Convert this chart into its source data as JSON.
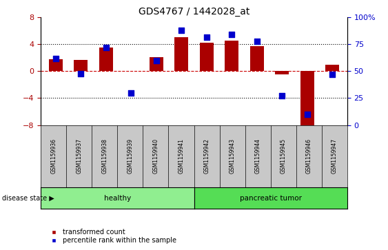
{
  "title": "GDS4767 / 1442028_at",
  "samples": [
    "GSM1159936",
    "GSM1159937",
    "GSM1159938",
    "GSM1159939",
    "GSM1159940",
    "GSM1159941",
    "GSM1159942",
    "GSM1159943",
    "GSM1159944",
    "GSM1159945",
    "GSM1159946",
    "GSM1159947"
  ],
  "transformed_count": [
    1.8,
    1.7,
    3.5,
    0.0,
    2.1,
    5.1,
    4.2,
    4.6,
    3.7,
    -0.5,
    -8.2,
    1.0
  ],
  "percentile_rank": [
    62,
    48,
    72,
    30,
    60,
    88,
    82,
    84,
    78,
    27,
    10,
    47
  ],
  "healthy_count": 6,
  "ylim_left": [
    -8,
    8
  ],
  "ylim_right": [
    0,
    100
  ],
  "yticks_left": [
    -8,
    -4,
    0,
    4,
    8
  ],
  "yticks_right": [
    0,
    25,
    50,
    75,
    100
  ],
  "bar_color": "#AA0000",
  "dot_color": "#0000CC",
  "hline_color": "#CC0000",
  "healthy_fill": "#90EE90",
  "tumor_fill": "#55DD55",
  "label_box_fill": "#C8C8C8",
  "disease_state_label": "disease state",
  "healthy_label": "healthy",
  "tumor_label": "pancreatic tumor",
  "legend_bar": "transformed count",
  "legend_dot": "percentile rank within the sample",
  "bar_width": 0.55,
  "dot_size": 28
}
